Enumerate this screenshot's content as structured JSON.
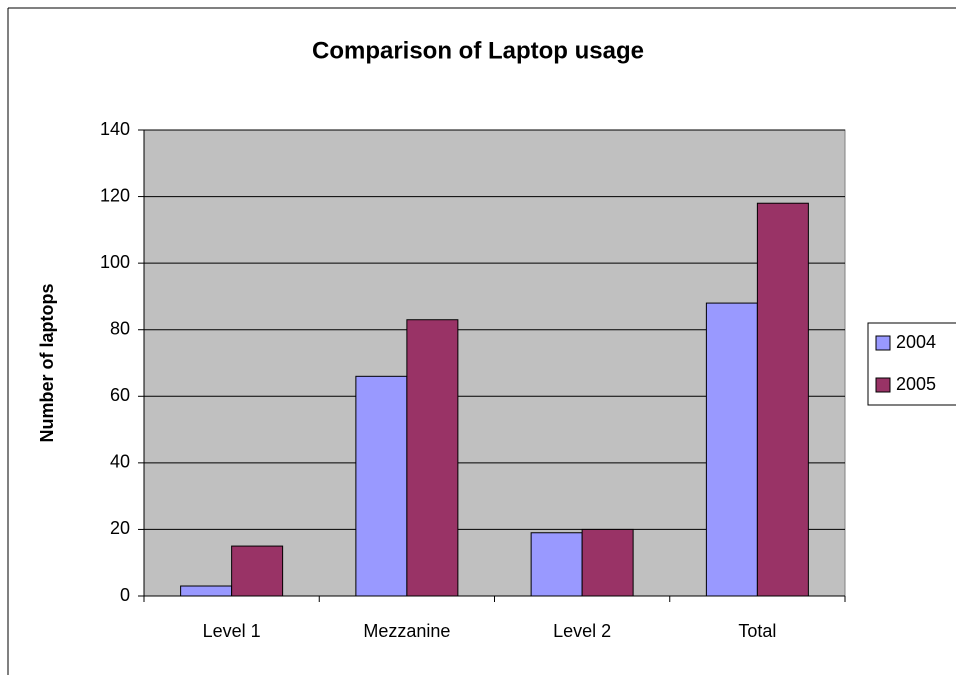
{
  "chart_data": {
    "type": "bar",
    "title": "Comparison of Laptop usage",
    "ylabel": "Number of laptops",
    "categories": [
      "Level 1",
      "Mezzanine",
      "Level 2",
      "Total"
    ],
    "series": [
      {
        "name": "2004",
        "color": "#9999ff",
        "values": [
          3,
          66,
          19,
          88
        ]
      },
      {
        "name": "2005",
        "color": "#993366",
        "values": [
          15,
          83,
          20,
          118
        ]
      }
    ],
    "ylim": [
      0,
      140
    ],
    "yticks": [
      0,
      20,
      40,
      60,
      80,
      100,
      120,
      140
    ],
    "grid": true,
    "legend": "right"
  }
}
